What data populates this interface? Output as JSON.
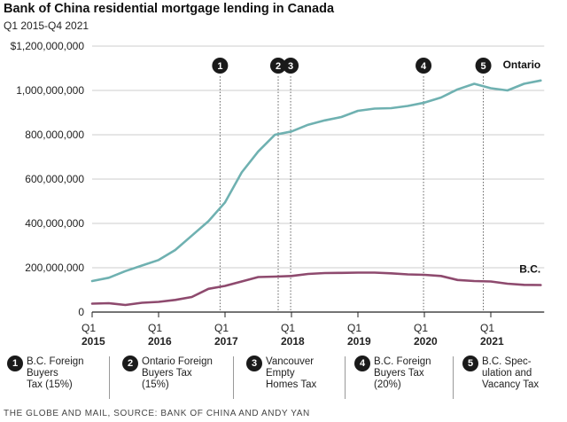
{
  "header": {
    "title": "Bank of China residential mortgage lending in Canada",
    "subtitle": "Q1 2015-Q4 2021"
  },
  "chart_data": {
    "type": "line",
    "title": "Bank of China residential mortgage lending in Canada",
    "subtitle": "Q1 2015-Q4 2021",
    "xlabel": "",
    "ylabel": "",
    "ylim": [
      0,
      1200000000
    ],
    "yticks": [
      "$1,200,000,000",
      "1,000,000,000",
      "800,000,000",
      "600,000,000",
      "400,000,000",
      "200,000,000",
      "0"
    ],
    "ytick_values": [
      1200000000,
      1000000000,
      800000000,
      600000000,
      400000000,
      200000000,
      0
    ],
    "grid": "horizontal",
    "x": [
      "2015 Q1",
      "2015 Q2",
      "2015 Q3",
      "2015 Q4",
      "2016 Q1",
      "2016 Q2",
      "2016 Q3",
      "2016 Q4",
      "2017 Q1",
      "2017 Q2",
      "2017 Q3",
      "2017 Q4",
      "2018 Q1",
      "2018 Q2",
      "2018 Q3",
      "2018 Q4",
      "2019 Q1",
      "2019 Q2",
      "2019 Q3",
      "2019 Q4",
      "2020 Q1",
      "2020 Q2",
      "2020 Q3",
      "2020 Q4",
      "2021 Q1",
      "2021 Q2",
      "2021 Q3",
      "2021 Q4"
    ],
    "xticks": [
      {
        "q": "Q1",
        "year": "2015"
      },
      {
        "q": "Q1",
        "year": "2016"
      },
      {
        "q": "Q1",
        "year": "2017"
      },
      {
        "q": "Q1",
        "year": "2018"
      },
      {
        "q": "Q1",
        "year": "2019"
      },
      {
        "q": "Q1",
        "year": "2020"
      },
      {
        "q": "Q1",
        "year": "2021"
      }
    ],
    "series": [
      {
        "name": "Ontario",
        "color": "#6fb1b1",
        "values": [
          140000000,
          155000000,
          185000000,
          210000000,
          235000000,
          280000000,
          345000000,
          410000000,
          495000000,
          630000000,
          725000000,
          800000000,
          815000000,
          845000000,
          865000000,
          880000000,
          908000000,
          918000000,
          920000000,
          930000000,
          945000000,
          968000000,
          1005000000,
          1030000000,
          1010000000,
          1000000000,
          1030000000,
          1045000000
        ]
      },
      {
        "name": "B.C.",
        "color": "#8e4a6e",
        "values": [
          38000000,
          40000000,
          32000000,
          42000000,
          46000000,
          55000000,
          68000000,
          105000000,
          118000000,
          138000000,
          158000000,
          160000000,
          163000000,
          172000000,
          176000000,
          177000000,
          178000000,
          178000000,
          175000000,
          170000000,
          168000000,
          163000000,
          145000000,
          140000000,
          138000000,
          128000000,
          123000000,
          122000000
        ]
      }
    ],
    "events": [
      {
        "num": "1",
        "x": 15.4,
        "label": "B.C. Foreign\nBuyers\nTax (15%)"
      },
      {
        "num": "2",
        "x": 22.4,
        "label": "Ontario Foreign\nBuyers Tax\n(15%)"
      },
      {
        "num": "3",
        "x": 23.9,
        "label": "Vancouver\nEmpty\nHomes Tax"
      },
      {
        "num": "4",
        "x": 39.9,
        "label": "B.C. Foreign\nBuyers Tax\n(20%)"
      },
      {
        "num": "5",
        "x": 47.1,
        "label": "B.C. Spec-\nulation and\nVacancy Tax"
      }
    ]
  },
  "source": "THE GLOBE AND MAIL, SOURCE: BANK OF CHINA AND ANDY YAN",
  "colors": {
    "ontario": "#6fb1b1",
    "bc": "#8e4a6e",
    "marker": "#1a1a1a",
    "grid": "#cccccc"
  }
}
